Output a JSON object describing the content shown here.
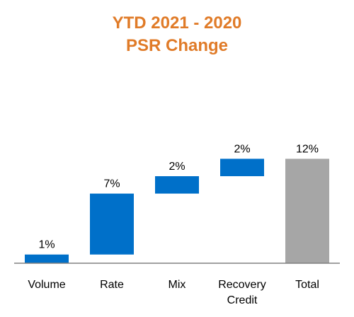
{
  "chart_data": {
    "type": "waterfall",
    "title": [
      "YTD 2021 - 2020",
      "PSR Change"
    ],
    "xlabel": "",
    "ylabel": "",
    "categories": [
      [
        "Volume"
      ],
      [
        "Rate"
      ],
      [
        "Mix"
      ],
      [
        "Recovery",
        "Credit"
      ],
      [
        "Total"
      ]
    ],
    "values": [
      1,
      7,
      2,
      2,
      12
    ],
    "value_labels": [
      "1%",
      "7%",
      "2%",
      "2%",
      "12%"
    ],
    "is_total": [
      false,
      false,
      false,
      false,
      true
    ],
    "ylim": [
      0,
      12
    ],
    "grid": false,
    "legend": "none"
  },
  "colors": {
    "title": "#E07B28",
    "increase": "#0070C9",
    "total": "#A6A6A6",
    "axis": "#808080"
  }
}
